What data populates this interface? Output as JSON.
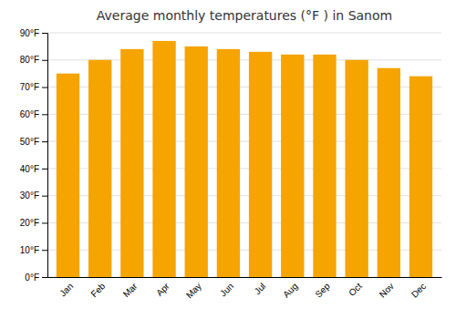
{
  "chart_data": {
    "type": "bar",
    "title": "Average monthly temperatures (°F ) in Sanom",
    "categories": [
      "Jan",
      "Feb",
      "Mar",
      "Apr",
      "May",
      "Jun",
      "Jul",
      "Aug",
      "Sep",
      "Oct",
      "Nov",
      "Dec"
    ],
    "values": [
      75,
      80,
      84,
      87,
      85,
      84,
      83,
      82,
      82,
      80,
      77,
      74
    ],
    "color": "#F5A400",
    "ylim": [
      0,
      90
    ],
    "yticks": [
      {
        "value": 0,
        "label": "0°F"
      },
      {
        "value": 10,
        "label": "10°F"
      },
      {
        "value": 20,
        "label": "20°F"
      },
      {
        "value": 30,
        "label": "30°F"
      },
      {
        "value": 40,
        "label": "40°F"
      },
      {
        "value": 50,
        "label": "50°F"
      },
      {
        "value": 60,
        "label": "60°F"
      },
      {
        "value": 70,
        "label": "70°F"
      },
      {
        "value": 80,
        "label": "80°F"
      },
      {
        "value": 90,
        "label": "90°F"
      }
    ],
    "grid": true
  }
}
